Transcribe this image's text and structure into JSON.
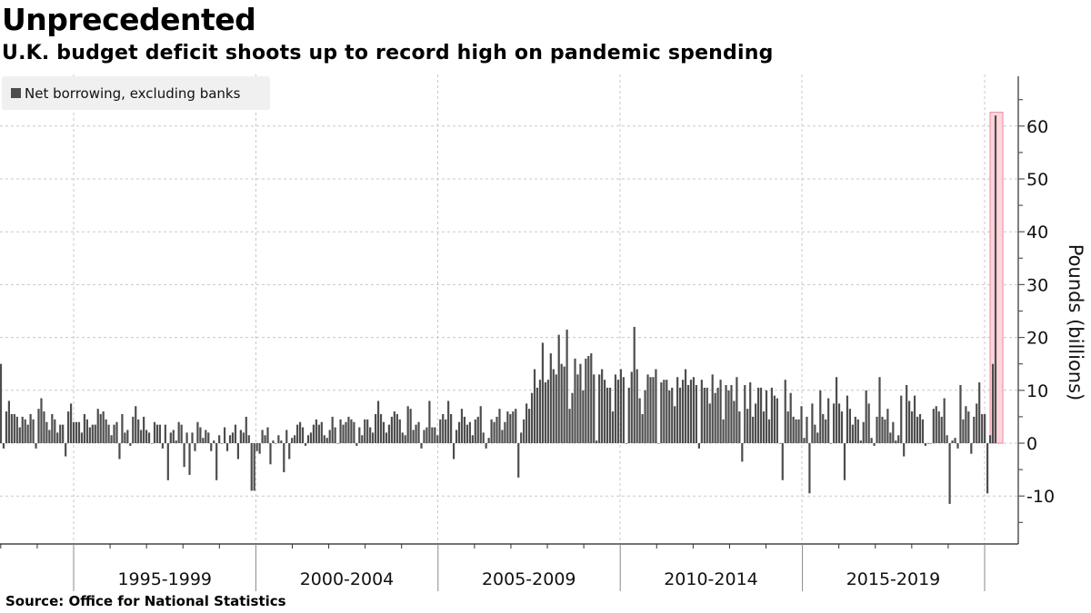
{
  "header": {
    "title": "Unprecedented",
    "subtitle": "U.K. budget deficit shoots up to record high on pandemic spending"
  },
  "legend": {
    "items": [
      {
        "label": "Net borrowing, excluding banks",
        "color": "#4d4d4d"
      }
    ]
  },
  "footer": {
    "source": "Source: Office for National Statistics"
  },
  "colors": {
    "bar": "#4d4d4d",
    "highlight_fill": "#ffd6dd",
    "highlight_stroke": "#e48a9c",
    "grid": "#c8c8c8",
    "axis": "#555555"
  },
  "chart_data": {
    "type": "bar",
    "title": "Unprecedented",
    "subtitle": "U.K. budget deficit shoots up to record high on pandemic spending",
    "xlabel": "",
    "ylabel": "Pounds (billions)",
    "ylim": [
      -19,
      69
    ],
    "yticks": [
      -10,
      0,
      10,
      20,
      30,
      40,
      50,
      60
    ],
    "y_axis_position": "right",
    "grid": true,
    "legend_position": "top-left",
    "x_period_labels": [
      "1995-1999",
      "2000-2004",
      "2005-2009",
      "2010-2014",
      "2015-2019"
    ],
    "x_start": "1993-01",
    "frequency": "monthly",
    "highlight": {
      "range": [
        "2020-04",
        "2020-05"
      ],
      "note": "pandemic spike, record high ~62"
    },
    "series": [
      {
        "name": "Net borrowing, excluding banks",
        "values": [
          15,
          -1,
          6,
          8,
          5.5,
          5.5,
          5,
          3,
          5,
          4.5,
          3.5,
          5.5,
          4.5,
          -1,
          6.5,
          8.5,
          6,
          4,
          2.5,
          5.5,
          4.5,
          2,
          3.5,
          3.5,
          -2.5,
          6,
          7.5,
          4,
          4,
          4,
          2,
          5.5,
          4.5,
          3,
          3.5,
          3.5,
          6.5,
          5.5,
          6,
          4.5,
          3.5,
          1.5,
          3.5,
          4,
          -3,
          5.5,
          2,
          2.5,
          -0.5,
          5,
          7,
          4.5,
          2.5,
          5,
          2.5,
          2,
          0,
          4,
          3.5,
          3.5,
          -1,
          3.5,
          -7,
          2,
          2.5,
          0.5,
          4,
          3.5,
          -4.5,
          2,
          -6,
          2,
          -1.5,
          4,
          3,
          1,
          2.5,
          2,
          -1.5,
          0.5,
          -7,
          1.5,
          0,
          3,
          -1.5,
          1.5,
          2,
          3.5,
          -3,
          2.5,
          2,
          5,
          1.5,
          -9,
          -9,
          -1.5,
          -2,
          2.5,
          1.5,
          3,
          -4,
          0.5,
          0,
          1.5,
          0.5,
          -5.5,
          2.5,
          -3,
          1,
          1.5,
          3.5,
          4,
          3,
          -0.5,
          1.5,
          2,
          3.5,
          4.5,
          3.5,
          4,
          1.5,
          1,
          2.5,
          5,
          3,
          0,
          4.5,
          3.5,
          4,
          5,
          4.5,
          4,
          -0.5,
          3,
          1.5,
          4.5,
          4.5,
          3,
          2,
          5.5,
          8,
          5.5,
          4,
          2,
          3.5,
          5,
          6,
          5.5,
          4.5,
          2,
          1.5,
          7,
          6.5,
          2.5,
          3.5,
          4,
          -1,
          2.5,
          3,
          8,
          3,
          3,
          1.5,
          4.5,
          5.5,
          4.5,
          8,
          5.5,
          -3,
          2.5,
          4,
          6.5,
          5,
          3.5,
          4,
          1.5,
          4.5,
          5,
          7,
          2,
          -1,
          1,
          4.5,
          4,
          5,
          6.5,
          2.5,
          4,
          6,
          5.5,
          6,
          6.5,
          -6.5,
          2,
          4.5,
          7.5,
          6.5,
          9.5,
          14,
          10.5,
          12,
          19,
          11.5,
          12,
          17,
          14,
          13,
          20.5,
          15,
          14.5,
          21.5,
          6.5,
          9.5,
          16,
          13,
          15,
          10,
          16,
          16.5,
          17,
          13,
          0.5,
          13,
          14,
          12,
          10.5,
          10.5,
          6,
          13,
          12,
          14,
          12.5,
          0,
          10.5,
          13.5,
          22,
          14,
          8.5,
          5.5,
          10,
          13,
          12.5,
          12.5,
          14,
          0,
          11.5,
          12,
          12,
          10,
          10.5,
          7,
          12.5,
          10.5,
          12,
          14,
          11,
          12,
          12.5,
          11,
          -1,
          12,
          10.5,
          10.5,
          7.5,
          13,
          9.5,
          10.5,
          12,
          4.5,
          11,
          10,
          11,
          8,
          12.5,
          6,
          -3.5,
          11,
          6.5,
          11.5,
          5,
          7.5,
          10.5,
          10.5,
          6,
          10,
          4.5,
          10.5,
          9,
          8.5,
          0,
          -7,
          12,
          6,
          9.5,
          5,
          4.5,
          4.5,
          7,
          1,
          5,
          -9.5,
          7.5,
          3.5,
          2,
          10,
          5.5,
          4.5,
          8.5,
          0,
          7.5,
          12.5,
          7.5,
          6,
          -7,
          9,
          6.5,
          3.5,
          5,
          4.5,
          0.5,
          4,
          10,
          7.5,
          1,
          -0.5,
          5,
          12.5,
          5,
          4.5,
          6.5,
          2,
          4,
          0.5,
          1.5,
          9,
          -2.5,
          11,
          8,
          6,
          9,
          5,
          5.5,
          4.5,
          -0.5,
          0,
          0,
          6.5,
          7,
          6,
          5,
          8.5,
          1.5,
          -11.5,
          0.5,
          1,
          -1,
          11,
          4.5,
          7,
          6,
          -2,
          5,
          7.5,
          11.5,
          5.5,
          5.5,
          -9.5,
          1.5,
          15,
          62
        ]
      }
    ]
  }
}
